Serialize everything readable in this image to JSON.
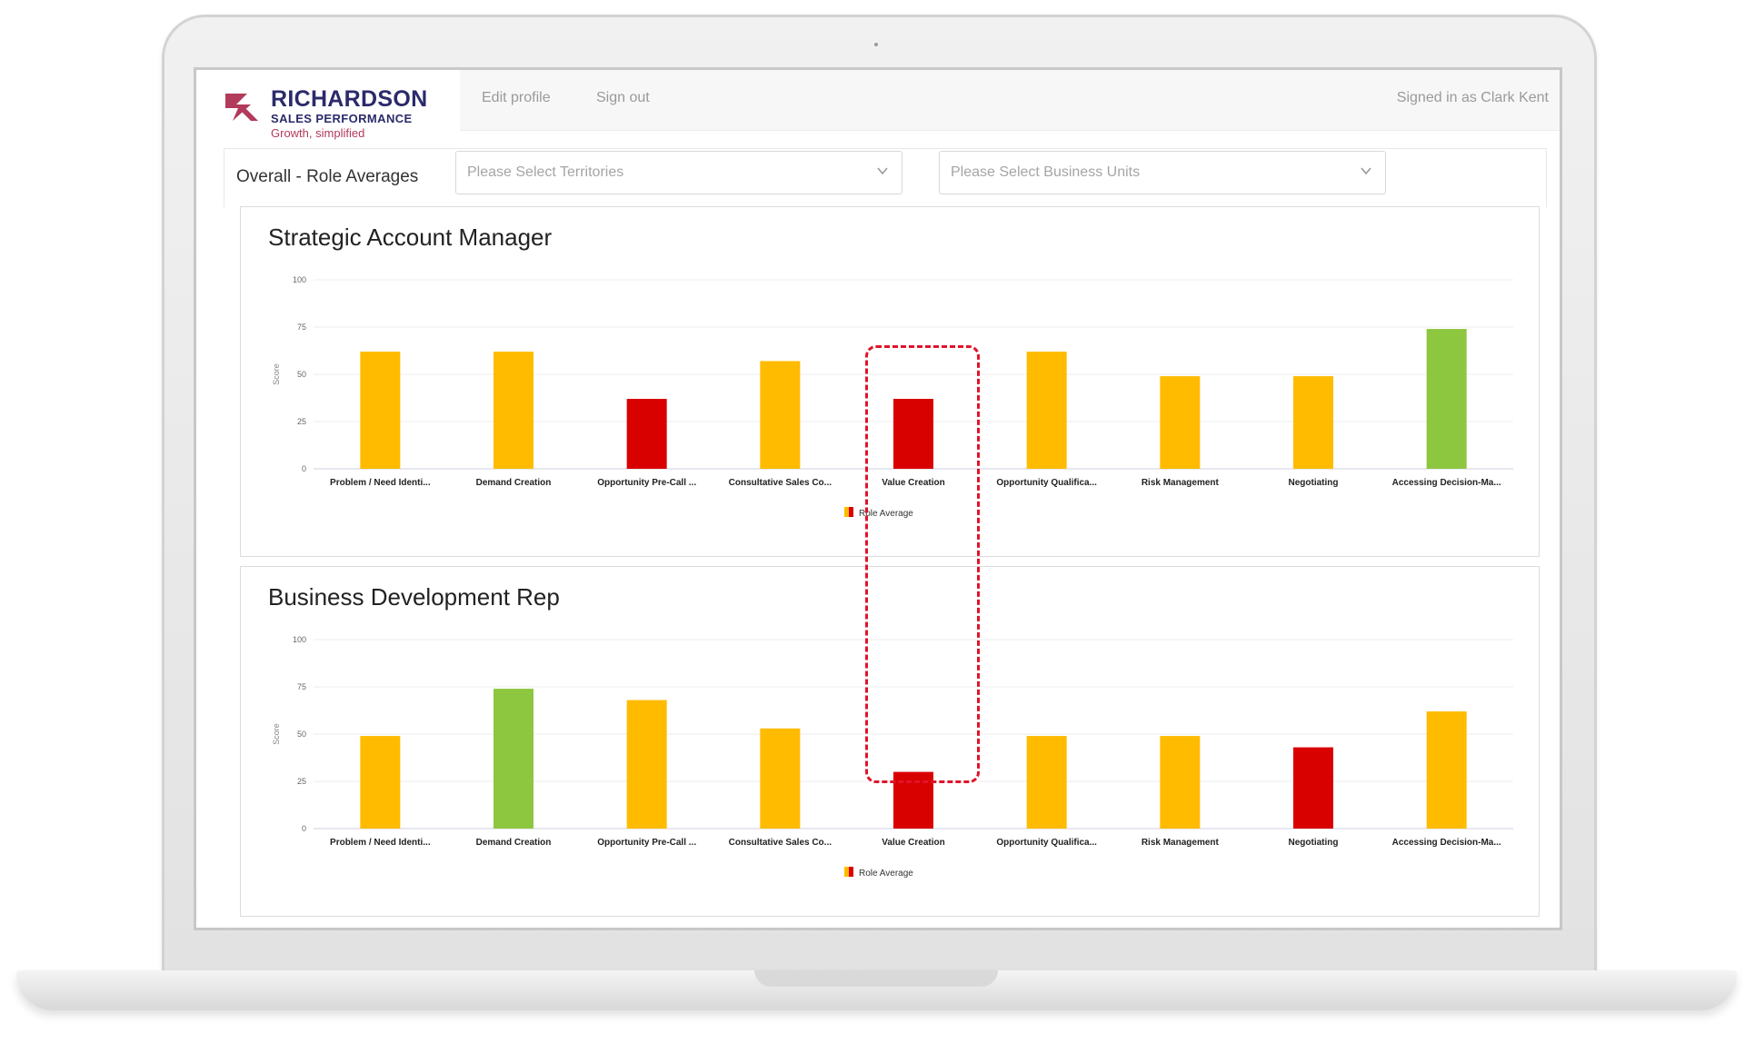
{
  "header": {
    "logo": {
      "name": "RICHARDSON",
      "sub": "SALES PERFORMANCE",
      "tagline": "Growth, simplified"
    },
    "nav": [
      {
        "label": "Edit profile"
      },
      {
        "label": "Sign out"
      }
    ],
    "user_status": "Signed in as Clark Kent"
  },
  "filters": {
    "heading": "Overall - Role Averages",
    "territories": {
      "placeholder": "Please Select Territories"
    },
    "business_units": {
      "placeholder": "Please Select Business Units"
    }
  },
  "colors": {
    "red": "#d90000",
    "amber": "#ffbb00",
    "green": "#8dc63f",
    "highlight": "#e0142a"
  },
  "chart_data": [
    {
      "type": "bar",
      "title": "Strategic Account Manager",
      "ylabel": "Score",
      "ylim": [
        0,
        100
      ],
      "yticks": [
        0,
        25,
        50,
        75,
        100
      ],
      "categories": [
        "Problem / Need Identi...",
        "Demand Creation",
        "Opportunity Pre-Call ...",
        "Consultative Sales Co...",
        "Value Creation",
        "Opportunity Qualifica...",
        "Risk Management",
        "Negotiating",
        "Accessing Decision-Ma..."
      ],
      "series": [
        {
          "name": "Role Average",
          "values": [
            62,
            62,
            37,
            57,
            37,
            62,
            49,
            49,
            74
          ],
          "colors": [
            "amber",
            "amber",
            "red",
            "amber",
            "red",
            "amber",
            "amber",
            "amber",
            "green"
          ]
        }
      ],
      "legend": "bottom",
      "grid": true
    },
    {
      "type": "bar",
      "title": "Business Development Rep",
      "ylabel": "Score",
      "ylim": [
        0,
        100
      ],
      "yticks": [
        0,
        25,
        50,
        75,
        100
      ],
      "categories": [
        "Problem / Need Identi...",
        "Demand Creation",
        "Opportunity Pre-Call ...",
        "Consultative Sales Co...",
        "Value Creation",
        "Opportunity Qualifica...",
        "Risk Management",
        "Negotiating",
        "Accessing Decision-Ma..."
      ],
      "series": [
        {
          "name": "Role Average",
          "values": [
            49,
            74,
            68,
            53,
            30,
            49,
            49,
            43,
            62
          ],
          "colors": [
            "amber",
            "green",
            "amber",
            "amber",
            "red",
            "amber",
            "amber",
            "red",
            "amber"
          ]
        }
      ],
      "legend": "bottom",
      "grid": true
    }
  ]
}
